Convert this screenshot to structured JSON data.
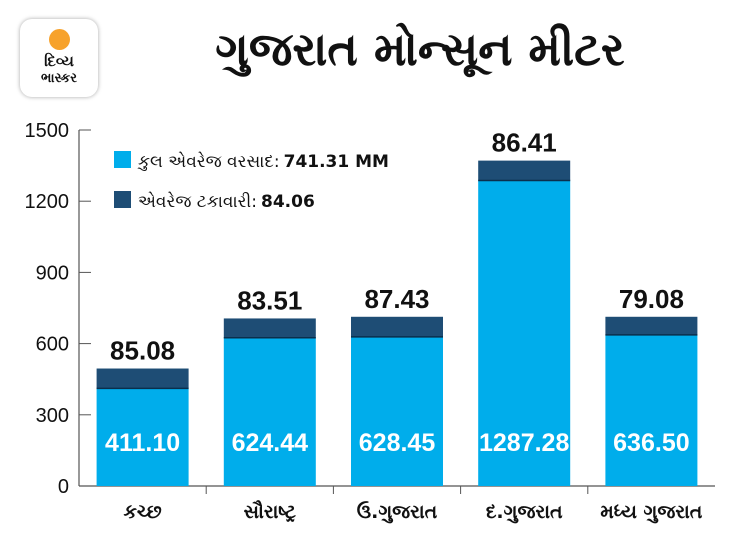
{
  "logo": {
    "line1": "દિવ્ય",
    "line2": "ભાસ્કર"
  },
  "title": "ગુજરાત મોન્સૂન મીટર",
  "chart_data": {
    "type": "bar",
    "stacked": true,
    "title": "ગુજરાત મોન્સૂન મીટર",
    "categories": [
      "કચ્છ",
      "સૌરાષ્ટ્ર",
      "ઉ.ગુજરાત",
      "દ.ગુજરાત",
      "મધ્ય ગુજરાત"
    ],
    "series": [
      {
        "name": "કુલ એવરેજ વરસાદ",
        "color": "#00adeb",
        "values": [
          411.1,
          624.44,
          628.45,
          1287.28,
          636.5
        ],
        "labels": [
          "411.10",
          "624.44",
          "628.45",
          "1287.28",
          "636.50"
        ]
      },
      {
        "name": "એવરેજ ટકાવારી",
        "color": "#1e4d75",
        "totals": [
          495,
          706,
          713,
          1371,
          713
        ],
        "labels": [
          "85.08",
          "83.51",
          "87.43",
          "86.41",
          "79.08"
        ]
      }
    ],
    "legend": [
      {
        "label": "કુલ એવરેજ વરસાદ:",
        "value": "741.31 MM"
      },
      {
        "label": "એવરેજ ટકાવારી:",
        "value": "84.06"
      }
    ],
    "legend_position": "top-left",
    "yticks": [
      "0",
      "300",
      "600",
      "900",
      "1200",
      "1500"
    ],
    "ylim": [
      0,
      1500
    ],
    "xlabel": "",
    "ylabel": "",
    "grid": false
  }
}
